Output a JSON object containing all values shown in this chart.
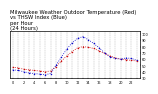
{
  "hours": [
    0,
    1,
    2,
    3,
    4,
    5,
    6,
    7,
    8,
    9,
    10,
    11,
    12,
    13,
    14,
    15,
    16,
    17,
    18,
    19,
    20,
    21,
    22,
    23
  ],
  "temp_red": [
    47,
    46,
    44,
    43,
    42,
    41,
    40,
    41,
    48,
    57,
    65,
    72,
    78,
    80,
    79,
    77,
    73,
    69,
    65,
    62,
    60,
    59,
    58,
    57
  ],
  "thsw_blue": [
    43,
    42,
    40,
    38,
    37,
    36,
    35,
    37,
    50,
    63,
    76,
    86,
    93,
    96,
    91,
    85,
    78,
    70,
    64,
    61,
    60,
    62,
    61,
    58
  ],
  "ylim_min": 30,
  "ylim_max": 105,
  "xlim_min": -0.5,
  "xlim_max": 23.5,
  "red_color": "#cc0000",
  "blue_color": "#0000cc",
  "bg_color": "#ffffff",
  "title_text": "Milwaukee Weather Outdoor Temperature (Red)",
  "title_line2": "vs THSW Index (Blue)",
  "title_line3": "per Hour",
  "title_line4": "(24 Hours)",
  "title_fontsize": 3.8,
  "tick_fontsize": 2.5,
  "grid_color": "#999999",
  "y_ticks": [
    30,
    40,
    50,
    60,
    70,
    80,
    90,
    100
  ],
  "y_tick_labels": [
    "30",
    "40",
    "50",
    "60",
    "70",
    "80",
    "90",
    "100"
  ]
}
